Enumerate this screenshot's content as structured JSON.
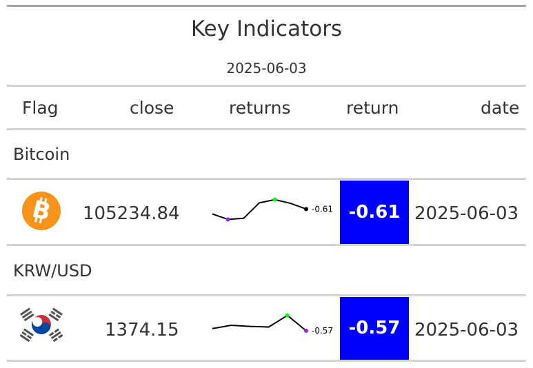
{
  "header": {
    "title": "Key Indicators",
    "subtitle": "2025-06-03"
  },
  "columns": {
    "flag": "Flag",
    "close": "close",
    "returns": "returns",
    "return": "return",
    "date": "date"
  },
  "colors": {
    "return_fill": "#0000ff",
    "spark_max": "#00ff00",
    "spark_min": "#a020f0",
    "spark_line": "#000000"
  },
  "rows": [
    {
      "group": "Bitcoin",
      "icon": "bitcoin-icon",
      "close": "105234.84",
      "spark": {
        "values": [
          0.3,
          0.05,
          0.1,
          0.8,
          0.95,
          0.78,
          0.52
        ],
        "last_label": "-0.61"
      },
      "return": "-0.61",
      "date": "2025-06-03"
    },
    {
      "group": "KRW/USD",
      "icon": "south-korea-flag-icon",
      "close": "1374.15",
      "spark": {
        "values": [
          0.35,
          0.5,
          0.45,
          0.42,
          0.95,
          0.25
        ],
        "last_label": "-0.57"
      },
      "return": "-0.57",
      "date": "2025-06-03"
    }
  ]
}
